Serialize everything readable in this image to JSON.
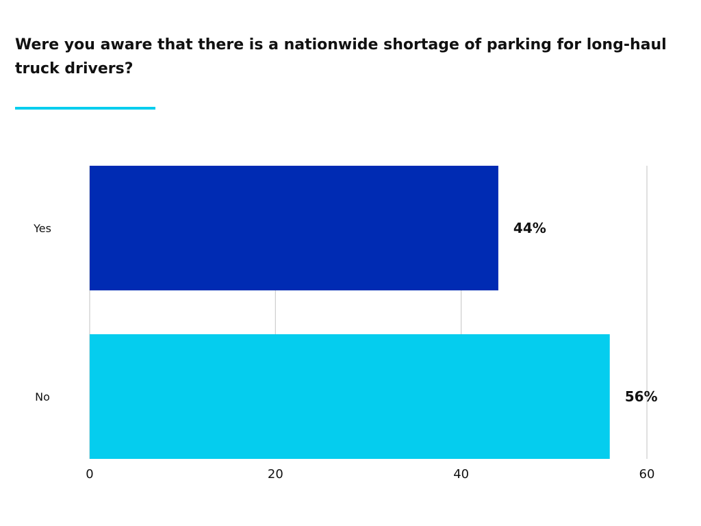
{
  "chart_data": {
    "type": "bar",
    "orientation": "horizontal",
    "title": "Were you aware that there is a nationwide shortage of parking for long-haul truck drivers?",
    "categories": [
      "Yes",
      "No"
    ],
    "values": [
      44,
      56
    ],
    "data_labels": [
      "44%",
      "56%"
    ],
    "bar_colors": [
      "#002bb3",
      "#05cdee"
    ],
    "xlim": [
      0,
      60
    ],
    "x_ticks": [
      0,
      20,
      40,
      60
    ],
    "x_tick_labels": [
      "0",
      "20",
      "40",
      "60"
    ],
    "grid": true,
    "legend": "none"
  },
  "colors": {
    "accent_rule": "#05cdee",
    "gridline": "#cccccc",
    "text": "#111111"
  }
}
